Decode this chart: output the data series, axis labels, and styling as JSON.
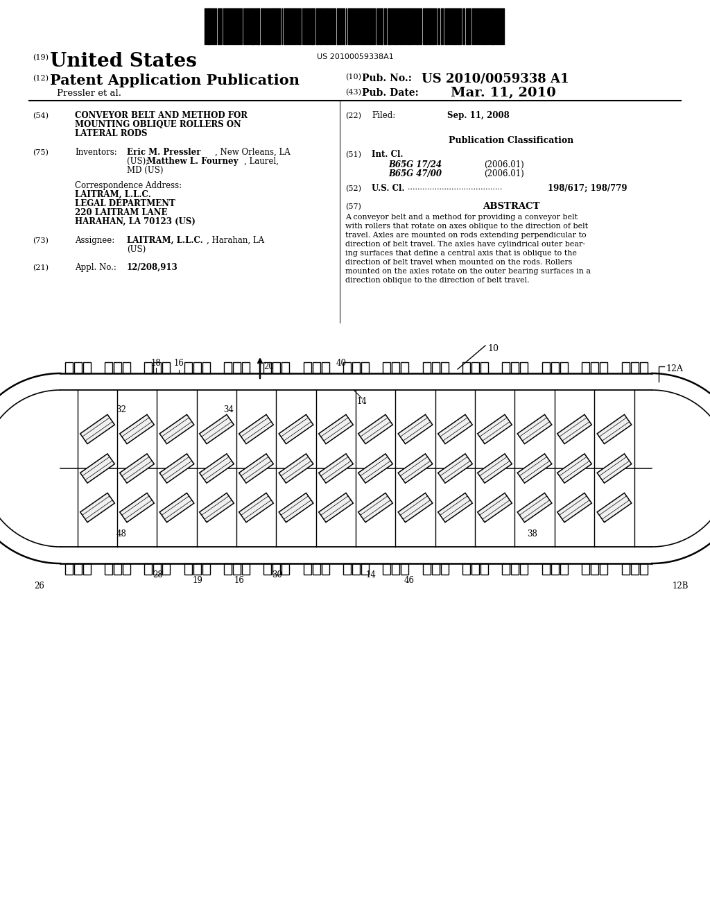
{
  "background_color": "#ffffff",
  "barcode_text": "US 20100059338A1",
  "country": "United States",
  "label_19": "(19)",
  "label_12": "(12)",
  "pub_type": "Patent Application Publication",
  "inventor_line": "Pressler et al.",
  "label_10": "(10)",
  "pub_no_label": "Pub. No.:",
  "pub_no": "US 2010/0059338 A1",
  "label_43": "(43)",
  "pub_date_label": "Pub. Date:",
  "pub_date": "Mar. 11, 2010",
  "label_54": "(54)",
  "title_line1": "CONVEYOR BELT AND METHOD FOR",
  "title_line2": "MOUNTING OBLIQUE ROLLERS ON",
  "title_line3": "LATERAL RODS",
  "label_75": "(75)",
  "inventors_label": "Inventors:",
  "inventors_name1": "Eric M. Pressler",
  "inventors_loc1": ", New Orleans, LA",
  "inventors_name2": "Matthew L. Fourney",
  "inventors_loc2": ", Laurel,",
  "inventors_loc3": "MD (US)",
  "corr_address_label": "Correspondence Address:",
  "corr_line1": "LAITRAM, L.L.C.",
  "corr_line2": "LEGAL DEPARTMENT",
  "corr_line3": "220 LAITRAM LANE",
  "corr_line4": "HARAHAN, LA 70123 (US)",
  "label_73": "(73)",
  "assignee_label": "Assignee:",
  "assignee_name": "LAITRAM, L.L.C.",
  "assignee_loc": ", Harahan, LA",
  "assignee_country": "(US)",
  "label_21": "(21)",
  "appl_label": "Appl. No.:",
  "appl_no": "12/208,913",
  "label_22": "(22)",
  "filed_label": "Filed:",
  "filed_date": "Sep. 11, 2008",
  "pub_class_title": "Publication Classification",
  "label_51": "(51)",
  "int_cl_label": "Int. Cl.",
  "int_cl_1_class": "B65G 17/24",
  "int_cl_1_year": "(2006.01)",
  "int_cl_2_class": "B65G 47/00",
  "int_cl_2_year": "(2006.01)",
  "label_52": "(52)",
  "us_cl_label": "U.S. Cl.",
  "us_cl_dots": ".......................................",
  "us_cl_value": "198/617",
  "us_cl_value2": "198/779",
  "label_57": "(57)",
  "abstract_title": "ABSTRACT",
  "abstract_lines": [
    "A conveyor belt and a method for providing a conveyor belt",
    "with rollers that rotate on axes oblique to the direction of belt",
    "travel. Axles are mounted on rods extending perpendicular to",
    "direction of belt travel. The axles have cylindrical outer bear-",
    "ing surfaces that define a central axis that is oblique to the",
    "direction of belt travel when mounted on the rods. Rollers",
    "mounted on the axles rotate on the outer bearing surfaces in a",
    "direction oblique to the direction of belt travel."
  ]
}
